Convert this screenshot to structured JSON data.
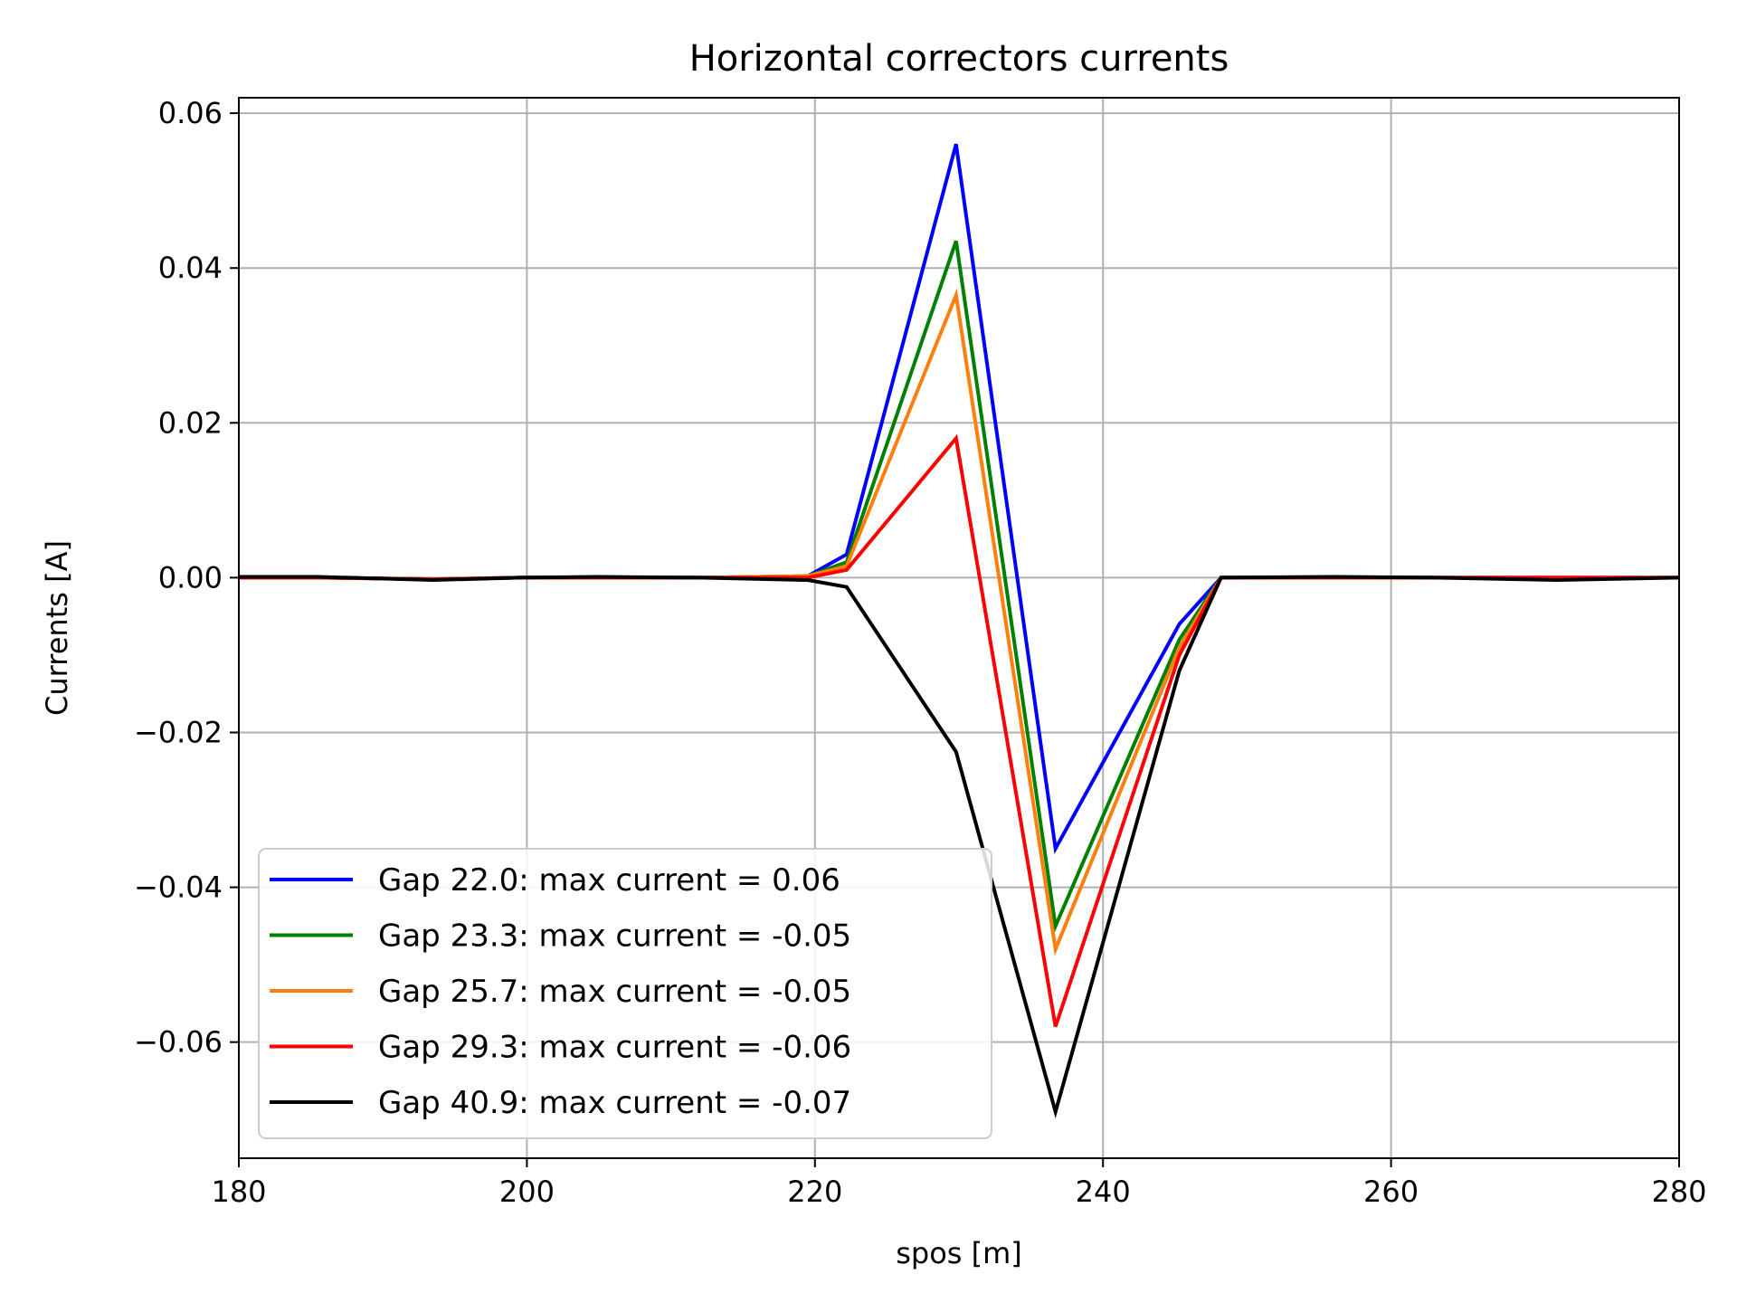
{
  "chart_data": {
    "type": "line",
    "title": "Horizontal correctors currents",
    "xlabel": "spos [m]",
    "ylabel": "Currents [A]",
    "xlim": [
      180,
      280
    ],
    "ylim": [
      -0.075,
      0.062
    ],
    "xticks": [
      180,
      200,
      220,
      240,
      260,
      280
    ],
    "yticks": [
      0.06,
      0.04,
      0.02,
      0.0,
      -0.02,
      -0.04,
      -0.06
    ],
    "xtick_labels": [
      "180",
      "200",
      "220",
      "240",
      "260",
      "280"
    ],
    "ytick_labels": [
      "0.06",
      "0.04",
      "0.02",
      "0.00",
      "−0.02",
      "−0.04",
      "−0.06"
    ],
    "grid": true,
    "legend_position": "lower-left",
    "x": [
      180,
      185.5,
      193.5,
      199.5,
      205,
      212,
      219.5,
      222.2,
      229.8,
      236.7,
      245.3,
      248.2,
      256,
      263,
      271.5,
      280
    ],
    "series": [
      {
        "name": "Gap 22.0: max current = 0.06",
        "color": "#0000ff",
        "values": [
          0.0,
          0.0,
          -0.0002,
          0.0,
          0.0,
          0.0,
          0.0002,
          0.003,
          0.056,
          -0.035,
          -0.006,
          0.0,
          0.0,
          0.0,
          0.0,
          0.0
        ]
      },
      {
        "name": "Gap 23.3: max current = -0.05",
        "color": "#008000",
        "values": [
          0.0,
          0.0,
          -0.0002,
          0.0,
          0.0,
          0.0,
          0.0002,
          0.002,
          0.0435,
          -0.045,
          -0.008,
          0.0,
          0.0,
          0.0,
          0.0,
          0.0
        ]
      },
      {
        "name": "Gap 25.7: max current = -0.05",
        "color": "#ff7f0e",
        "values": [
          0.0,
          0.0,
          -0.0002,
          0.0,
          0.0,
          0.0,
          0.0002,
          0.0015,
          0.0365,
          -0.048,
          -0.009,
          0.0,
          0.0,
          0.0,
          0.0,
          0.0
        ]
      },
      {
        "name": "Gap 29.3: max current = -0.06",
        "color": "#ff0000",
        "values": [
          0.0,
          0.0,
          -0.0002,
          0.0,
          0.0,
          0.0,
          0.0,
          0.001,
          0.018,
          -0.058,
          -0.01,
          0.0,
          0.0,
          0.0,
          0.0,
          0.0
        ]
      },
      {
        "name": "Gap 40.9: max current = -0.07",
        "color": "#000000",
        "values": [
          0.0001,
          0.0001,
          -0.0003,
          0.0,
          0.0001,
          0.0,
          -0.0003,
          -0.0012,
          -0.0225,
          -0.069,
          -0.012,
          0.0,
          0.0001,
          0.0,
          -0.0003,
          0.0
        ]
      }
    ]
  }
}
